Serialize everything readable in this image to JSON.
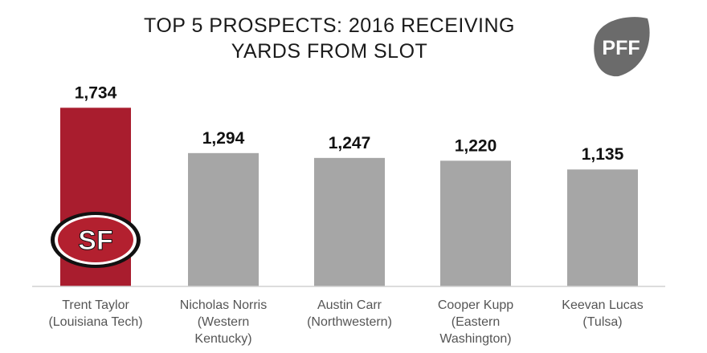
{
  "chart_data": {
    "type": "bar",
    "title_lines": [
      "TOP 5 PROSPECTS:  2016 RECEIVING",
      "YARDS FROM  SLOT"
    ],
    "categories": [
      [
        "Trent Taylor",
        "(Louisiana Tech)"
      ],
      [
        "Nicholas Norris",
        "(Western",
        "Kentucky)"
      ],
      [
        "Austin Carr",
        "(Northwestern)"
      ],
      [
        "Cooper Kupp",
        "(Eastern",
        "Washington)"
      ],
      [
        "Keevan Lucas",
        "(Tulsa)"
      ]
    ],
    "values": [
      1734,
      1294,
      1247,
      1220,
      1135
    ],
    "value_labels": [
      "1,734",
      "1,294",
      "1,247",
      "1,220",
      "1,135"
    ],
    "ylim": [
      0,
      1900
    ],
    "grid": false,
    "legend": "none"
  },
  "colors": {
    "highlight_bar": "#a91d2e",
    "bar": "#a6a6a6",
    "baseline": "#d0d0d0"
  },
  "logos": {
    "team_logo": {
      "icon": "sf-49ers-logo",
      "text": "SF"
    },
    "brand_logo": {
      "icon": "pff-logo",
      "text": "PFF"
    }
  }
}
